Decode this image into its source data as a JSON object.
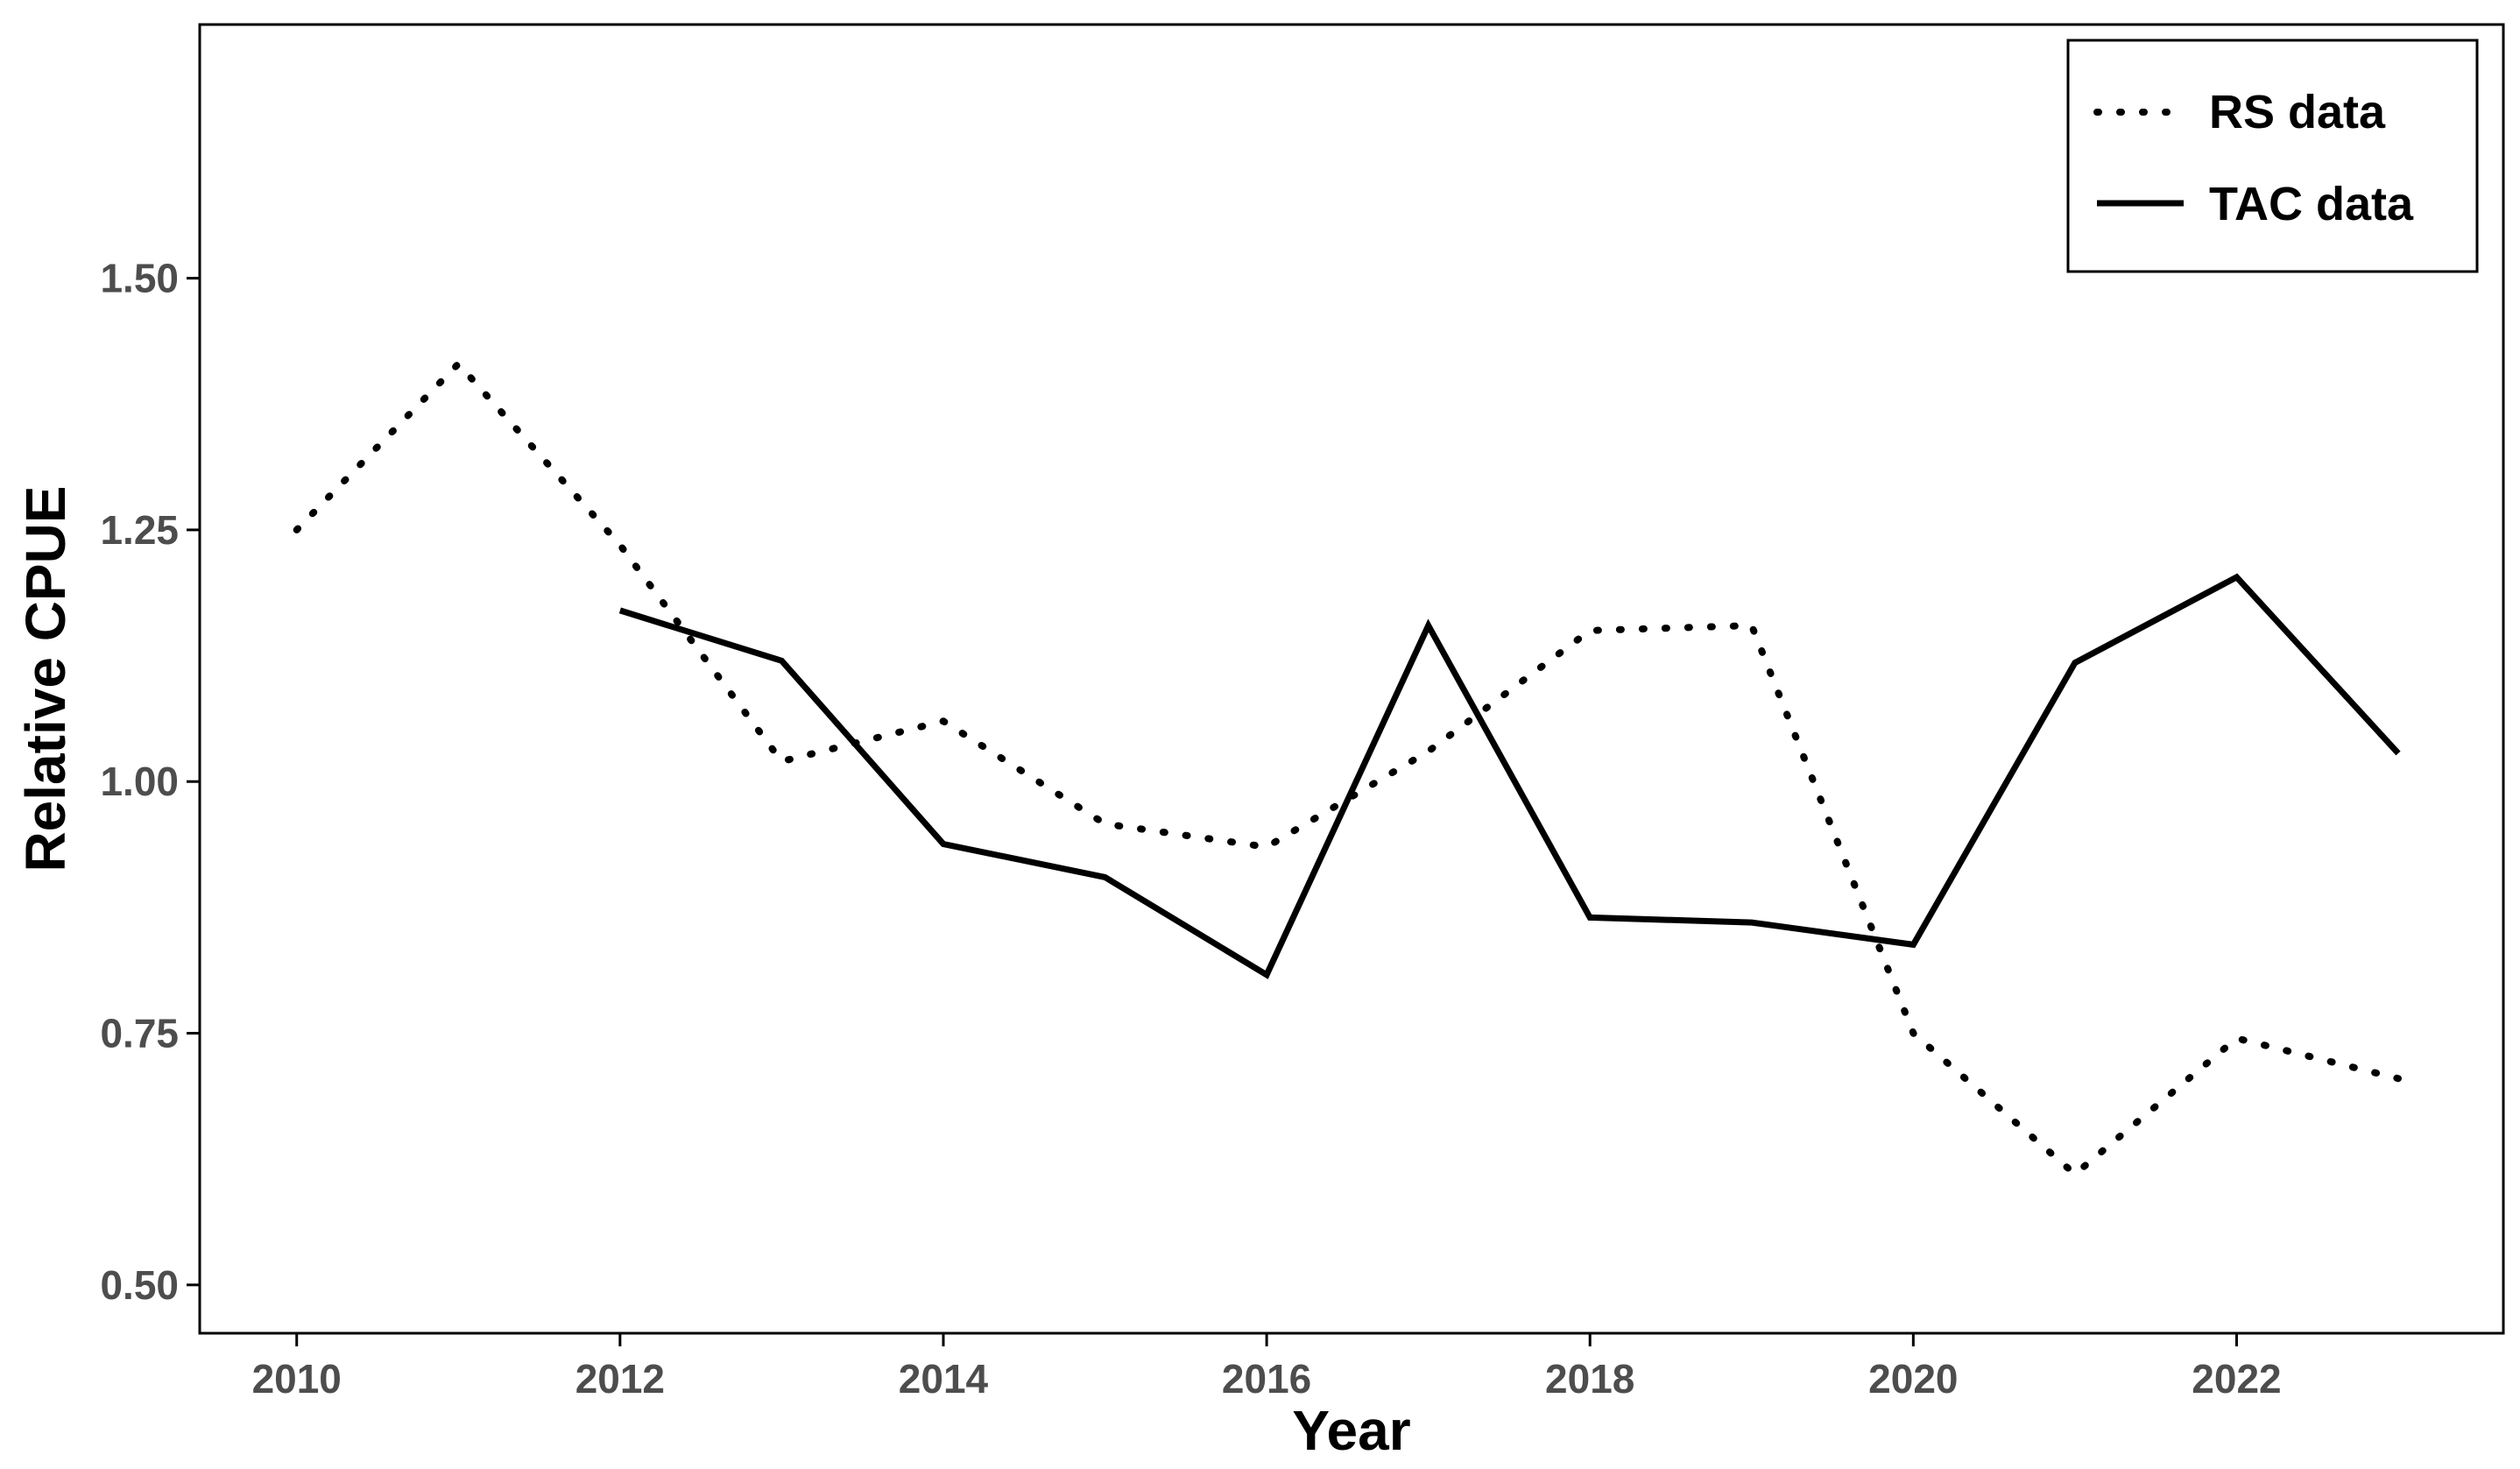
{
  "chart_data": {
    "type": "line",
    "title": "",
    "xlabel": "Year",
    "ylabel": "Relative CPUE",
    "xlim": [
      2009.4,
      2023.65
    ],
    "ylim": [
      0.452,
      1.752
    ],
    "xticks": [
      2010,
      2012,
      2014,
      2016,
      2018,
      2020,
      2022
    ],
    "xtick_labels": [
      "2010",
      "2012",
      "2014",
      "2016",
      "2018",
      "2020",
      "2022"
    ],
    "yticks": [
      0.5,
      0.75,
      1.0,
      1.25,
      1.5
    ],
    "ytick_labels": [
      "0.50",
      "0.75",
      "1.00",
      "1.25",
      "1.50"
    ],
    "grid": false,
    "legend_position": "top-right",
    "series": [
      {
        "name": "RS data",
        "style": "dotted",
        "color": "#000000",
        "x": [
          2010,
          2011,
          2012,
          2013,
          2014,
          2015,
          2016,
          2017,
          2018,
          2019,
          2020,
          2021,
          2022,
          2023
        ],
        "values": [
          1.25,
          1.415,
          1.235,
          1.02,
          1.06,
          0.958,
          0.935,
          1.03,
          1.15,
          1.155,
          0.75,
          0.61,
          0.745,
          0.705
        ]
      },
      {
        "name": "TAC data",
        "style": "solid",
        "color": "#000000",
        "x": [
          2012,
          2013,
          2014,
          2015,
          2016,
          2017,
          2018,
          2019,
          2020,
          2021,
          2022,
          2023
        ],
        "values": [
          1.17,
          1.12,
          0.938,
          0.905,
          0.808,
          1.155,
          0.865,
          0.86,
          0.838,
          1.118,
          1.203,
          1.028
        ]
      }
    ]
  }
}
